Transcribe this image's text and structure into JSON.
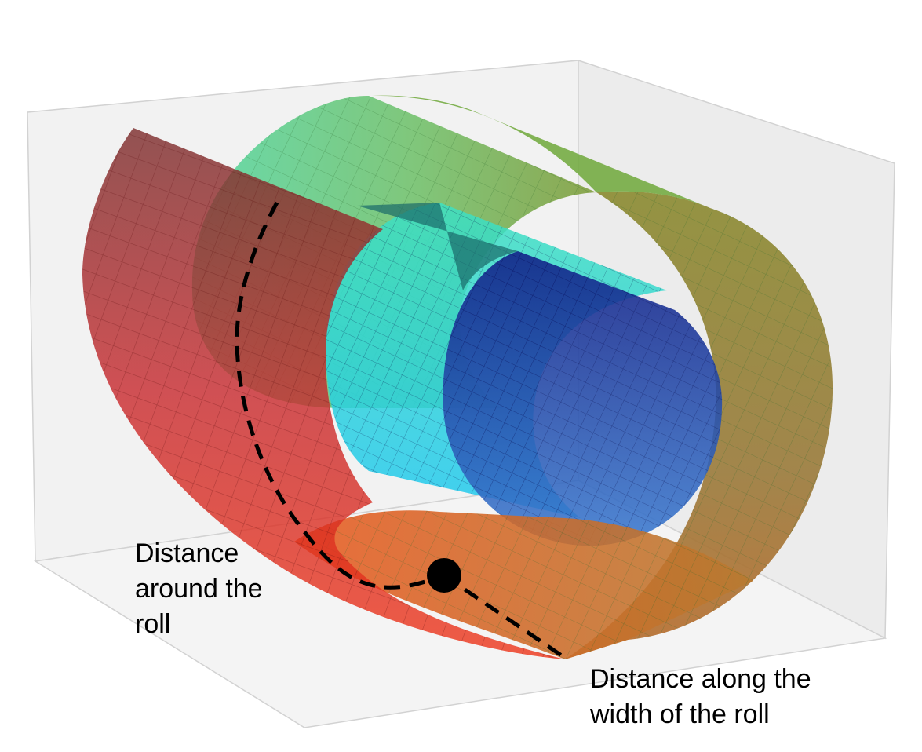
{
  "labels": {
    "around": "Distance\naround the\nroll",
    "along": "Distance along the\nwidth of the roll"
  },
  "colors": {
    "box_wall": "#f1f1f1",
    "box_edge": "#d0d0d0",
    "red_sheet": "#c8242a",
    "green_roll": "#5cbf6a",
    "olive_roll": "#8c8c2a",
    "orange_roll": "#d2702a",
    "cyan_roll": "#35c6e6",
    "blue_roll": "#1f2c9c",
    "grid_line": "#6b1010",
    "path": "#000000",
    "point": "#000000"
  }
}
